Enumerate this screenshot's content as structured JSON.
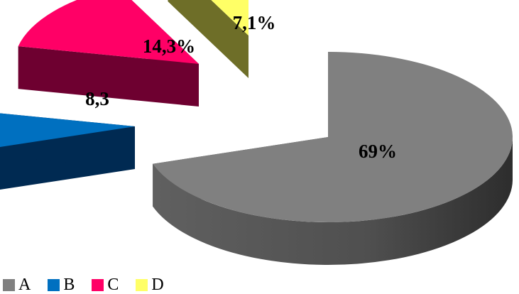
{
  "chart_data": {
    "type": "pie",
    "style": "3d-exploded",
    "title": "",
    "legend_position": "bottom-left",
    "slices": [
      {
        "name": "A",
        "value": 69.0,
        "label": "69%",
        "color": "#808080",
        "side_color": "#5a5a5a"
      },
      {
        "name": "B",
        "value": 8.3,
        "label": "8,3",
        "color": "#0070c0",
        "side_color": "#002a52"
      },
      {
        "name": "C",
        "value": 14.3,
        "label": "14,3%",
        "color": "#ff0066",
        "side_color": "#6e0030"
      },
      {
        "name": "D",
        "value": 7.1,
        "label": "7,1%",
        "color": "#ffff66",
        "side_color": "#6e6e28"
      }
    ]
  },
  "legend": {
    "items": [
      {
        "label": "A",
        "color": "#808080"
      },
      {
        "label": "B",
        "color": "#0070c0"
      },
      {
        "label": "C",
        "color": "#ff0066"
      },
      {
        "label": "D",
        "color": "#ffff66"
      }
    ]
  }
}
